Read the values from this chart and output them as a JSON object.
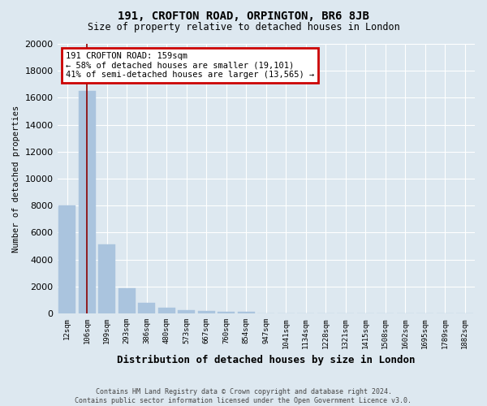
{
  "title": "191, CROFTON ROAD, ORPINGTON, BR6 8JB",
  "subtitle": "Size of property relative to detached houses in London",
  "xlabel": "Distribution of detached houses by size in London",
  "ylabel": "Number of detached properties",
  "annotation_line1": "191 CROFTON ROAD: 159sqm",
  "annotation_line2": "← 58% of detached houses are smaller (19,101)",
  "annotation_line3": "41% of semi-detached houses are larger (13,565) →",
  "footer": "Contains HM Land Registry data © Crown copyright and database right 2024.\nContains public sector information licensed under the Open Government Licence v3.0.",
  "categories": [
    "12sqm",
    "106sqm",
    "199sqm",
    "293sqm",
    "386sqm",
    "480sqm",
    "573sqm",
    "667sqm",
    "760sqm",
    "854sqm",
    "947sqm",
    "1041sqm",
    "1134sqm",
    "1228sqm",
    "1321sqm",
    "1415sqm",
    "1508sqm",
    "1602sqm",
    "1695sqm",
    "1789sqm",
    "1882sqm"
  ],
  "values": [
    8000,
    16500,
    5100,
    1850,
    800,
    420,
    240,
    160,
    120,
    140,
    20,
    10,
    5,
    3,
    2,
    1,
    1,
    1,
    1,
    1,
    1
  ],
  "bar_color": "#aac4de",
  "bg_color": "#dde8f0",
  "grid_color": "#ffffff",
  "annotation_box_color": "#ffffff",
  "annotation_box_edge": "#cc0000",
  "red_line_color": "#8b0000",
  "ylim": [
    0,
    20000
  ],
  "yticks": [
    0,
    2000,
    4000,
    6000,
    8000,
    10000,
    12000,
    14000,
    16000,
    18000,
    20000
  ],
  "red_line_bar_index": 1,
  "figsize": [
    6.0,
    5.0
  ],
  "dpi": 100
}
